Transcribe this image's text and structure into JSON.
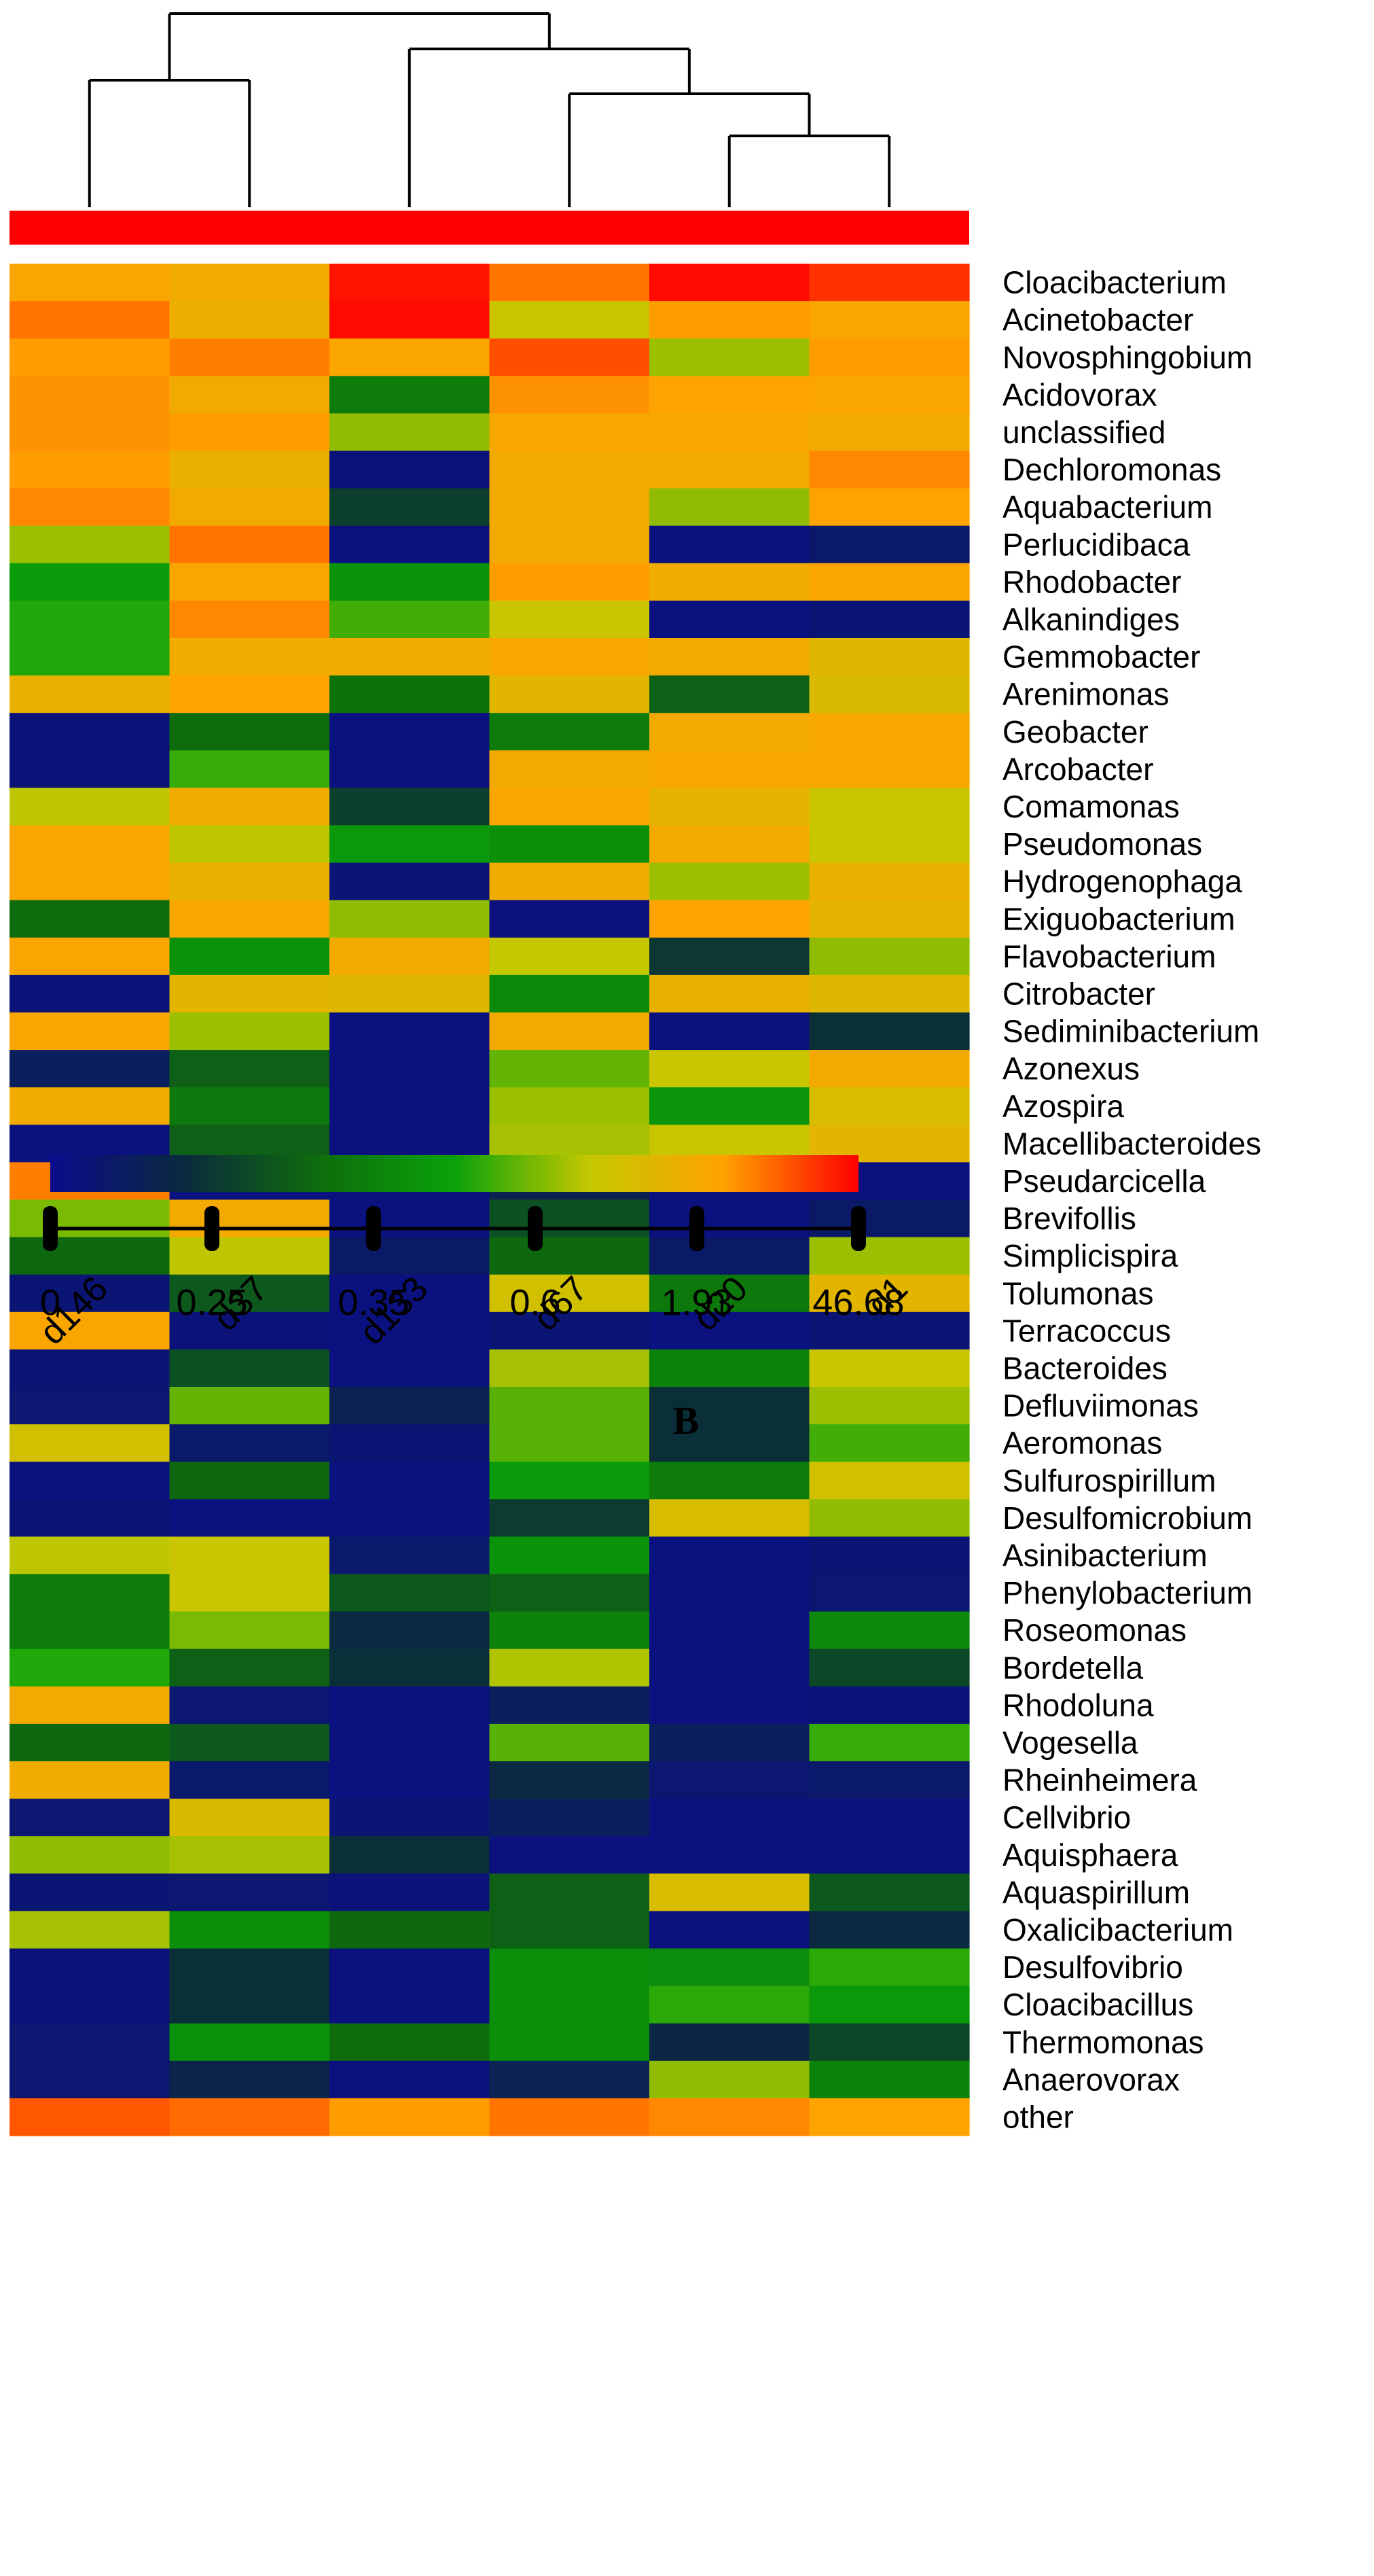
{
  "panel_label": "B",
  "chart_data": {
    "type": "heatmap",
    "columns": [
      "d146",
      "d37",
      "d133",
      "d67",
      "d20",
      "d1"
    ],
    "rows": [
      "Cloacibacterium",
      "Acinetobacter",
      "Novosphingobium",
      "Acidovorax",
      "unclassified",
      "Dechloromonas",
      "Aquabacterium",
      "Perlucidibaca",
      "Rhodobacter",
      "Alkanindiges",
      "Gemmobacter",
      "Arenimonas",
      "Geobacter",
      "Arcobacter",
      "Comamonas",
      "Pseudomonas",
      "Hydrogenophaga",
      "Exiguobacterium",
      "Flavobacterium",
      "Citrobacter",
      "Sediminibacterium",
      "Azonexus",
      "Azospira",
      "Macellibacteroides",
      "Pseudarcicella",
      "Brevifollis",
      "Simplicispira",
      "Tolumonas",
      "Terracoccus",
      "Bacteroides",
      "Defluviimonas",
      "Aeromonas",
      "Sulfurospirillum",
      "Desulfomicrobium",
      "Asinibacterium",
      "Phenylobacterium",
      "Roseomonas",
      "Bordetella",
      "Rhodoluna",
      "Vogesella",
      "Rheinheimera",
      "Cellvibrio",
      "Aquisphaera",
      "Aquaspirillum",
      "Oxalicibacterium",
      "Desulfovibrio",
      "Cloacibacillus",
      "Thermomonas",
      "Anaerovorax",
      "other"
    ],
    "values": [
      [
        0.82,
        0.8,
        0.98,
        0.88,
        0.99,
        0.95
      ],
      [
        0.88,
        0.78,
        0.99,
        0.68,
        0.84,
        0.82
      ],
      [
        0.84,
        0.87,
        0.82,
        0.92,
        0.63,
        0.84
      ],
      [
        0.85,
        0.8,
        0.38,
        0.85,
        0.83,
        0.82
      ],
      [
        0.85,
        0.84,
        0.62,
        0.81,
        0.81,
        0.8
      ],
      [
        0.84,
        0.77,
        0.04,
        0.8,
        0.8,
        0.86
      ],
      [
        0.86,
        0.8,
        0.22,
        0.8,
        0.62,
        0.83
      ],
      [
        0.63,
        0.88,
        0.03,
        0.8,
        0.03,
        0.07
      ],
      [
        0.48,
        0.82,
        0.45,
        0.84,
        0.79,
        0.82
      ],
      [
        0.52,
        0.86,
        0.55,
        0.68,
        0.03,
        0.05
      ],
      [
        0.52,
        0.79,
        0.79,
        0.81,
        0.8,
        0.74
      ],
      [
        0.77,
        0.83,
        0.35,
        0.75,
        0.3,
        0.73
      ],
      [
        0.04,
        0.33,
        0.03,
        0.38,
        0.8,
        0.81
      ],
      [
        0.04,
        0.54,
        0.03,
        0.8,
        0.81,
        0.81
      ],
      [
        0.66,
        0.79,
        0.22,
        0.82,
        0.76,
        0.68
      ],
      [
        0.81,
        0.66,
        0.47,
        0.44,
        0.8,
        0.68
      ],
      [
        0.82,
        0.77,
        0.05,
        0.79,
        0.63,
        0.77
      ],
      [
        0.33,
        0.81,
        0.62,
        0.03,
        0.83,
        0.76
      ],
      [
        0.82,
        0.45,
        0.8,
        0.67,
        0.2,
        0.62
      ],
      [
        0.04,
        0.75,
        0.74,
        0.42,
        0.77,
        0.74
      ],
      [
        0.82,
        0.63,
        0.03,
        0.8,
        0.03,
        0.18
      ],
      [
        0.1,
        0.3,
        0.03,
        0.58,
        0.68,
        0.8
      ],
      [
        0.79,
        0.37,
        0.03,
        0.63,
        0.46,
        0.72
      ],
      [
        0.03,
        0.3,
        0.03,
        0.64,
        0.68,
        0.75
      ],
      [
        0.87,
        0.03,
        0.03,
        0.13,
        0.03,
        0.03
      ],
      [
        0.6,
        0.8,
        0.03,
        0.26,
        0.03,
        0.08
      ],
      [
        0.32,
        0.66,
        0.08,
        0.32,
        0.08,
        0.63
      ],
      [
        0.05,
        0.28,
        0.03,
        0.7,
        0.37,
        0.75
      ],
      [
        0.82,
        0.04,
        0.03,
        0.05,
        0.03,
        0.05
      ],
      [
        0.05,
        0.26,
        0.03,
        0.64,
        0.4,
        0.68
      ],
      [
        0.06,
        0.58,
        0.12,
        0.57,
        0.18,
        0.63
      ],
      [
        0.7,
        0.07,
        0.05,
        0.57,
        0.18,
        0.55
      ],
      [
        0.03,
        0.32,
        0.03,
        0.48,
        0.38,
        0.7
      ],
      [
        0.05,
        0.03,
        0.03,
        0.21,
        0.72,
        0.62
      ],
      [
        0.66,
        0.68,
        0.07,
        0.45,
        0.03,
        0.05
      ],
      [
        0.38,
        0.68,
        0.28,
        0.3,
        0.03,
        0.06
      ],
      [
        0.38,
        0.6,
        0.16,
        0.4,
        0.03,
        0.42
      ],
      [
        0.52,
        0.3,
        0.18,
        0.65,
        0.03,
        0.24
      ],
      [
        0.8,
        0.06,
        0.03,
        0.1,
        0.03,
        0.04
      ],
      [
        0.32,
        0.28,
        0.03,
        0.57,
        0.1,
        0.54
      ],
      [
        0.79,
        0.07,
        0.03,
        0.16,
        0.06,
        0.07
      ],
      [
        0.06,
        0.73,
        0.05,
        0.1,
        0.03,
        0.03
      ],
      [
        0.62,
        0.64,
        0.18,
        0.03,
        0.03,
        0.03
      ],
      [
        0.05,
        0.06,
        0.04,
        0.3,
        0.72,
        0.28
      ],
      [
        0.64,
        0.44,
        0.32,
        0.3,
        0.03,
        0.16
      ],
      [
        0.04,
        0.18,
        0.03,
        0.44,
        0.43,
        0.53
      ],
      [
        0.04,
        0.18,
        0.03,
        0.44,
        0.53,
        0.47
      ],
      [
        0.06,
        0.45,
        0.33,
        0.44,
        0.15,
        0.24
      ],
      [
        0.06,
        0.14,
        0.03,
        0.12,
        0.62,
        0.4
      ],
      [
        0.91,
        0.89,
        0.84,
        0.88,
        0.86,
        0.83
      ]
    ],
    "colorbar": {
      "tick_labels": [
        "0",
        "0.25",
        "0.35",
        "0.6",
        "1.93",
        "46.68"
      ],
      "colors": [
        "#0b0c8c",
        "#0b2a3d",
        "#0e6d0c",
        "#0aa20a",
        "#c4c800",
        "#ffa200",
        "#ff0000"
      ]
    },
    "column_group_bar_color": "#ff0000",
    "dendrogram_order": [
      "d146",
      "d37",
      "d133",
      "d67",
      "d20",
      "d1"
    ]
  }
}
